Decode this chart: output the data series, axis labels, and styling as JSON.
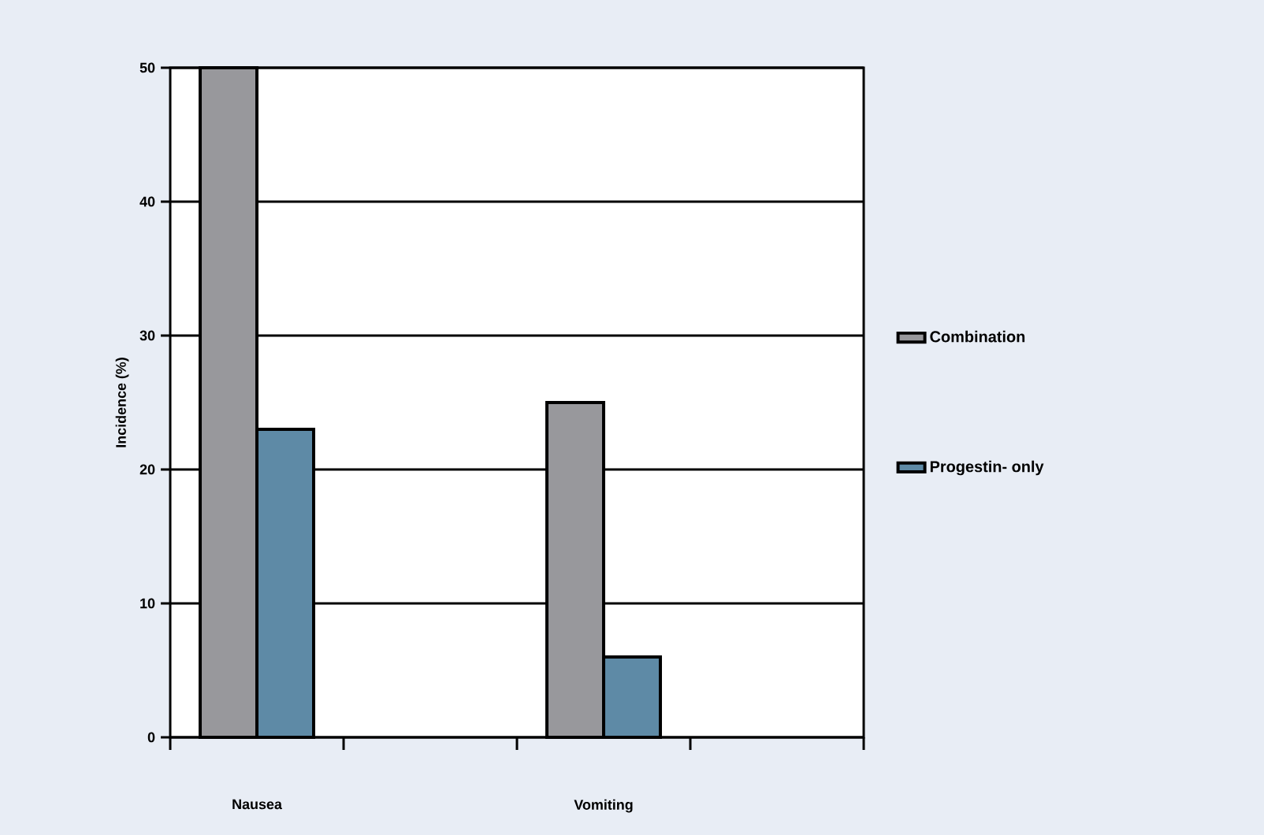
{
  "chart_data": {
    "type": "bar",
    "ylabel": "Incidence (%)",
    "categories": [
      "Nausea",
      null,
      "Vomiting",
      null
    ],
    "series": [
      {
        "name": "Combination",
        "color": "#98989c",
        "values": [
          50,
          null,
          25,
          null
        ]
      },
      {
        "name": "Progestin- only",
        "color": "#5e8aa6",
        "values": [
          23,
          null,
          6,
          null
        ]
      }
    ],
    "ylim": [
      0,
      50
    ],
    "yticks": [
      0,
      10,
      20,
      30,
      40,
      50
    ],
    "grid": "y",
    "legend": "right"
  }
}
